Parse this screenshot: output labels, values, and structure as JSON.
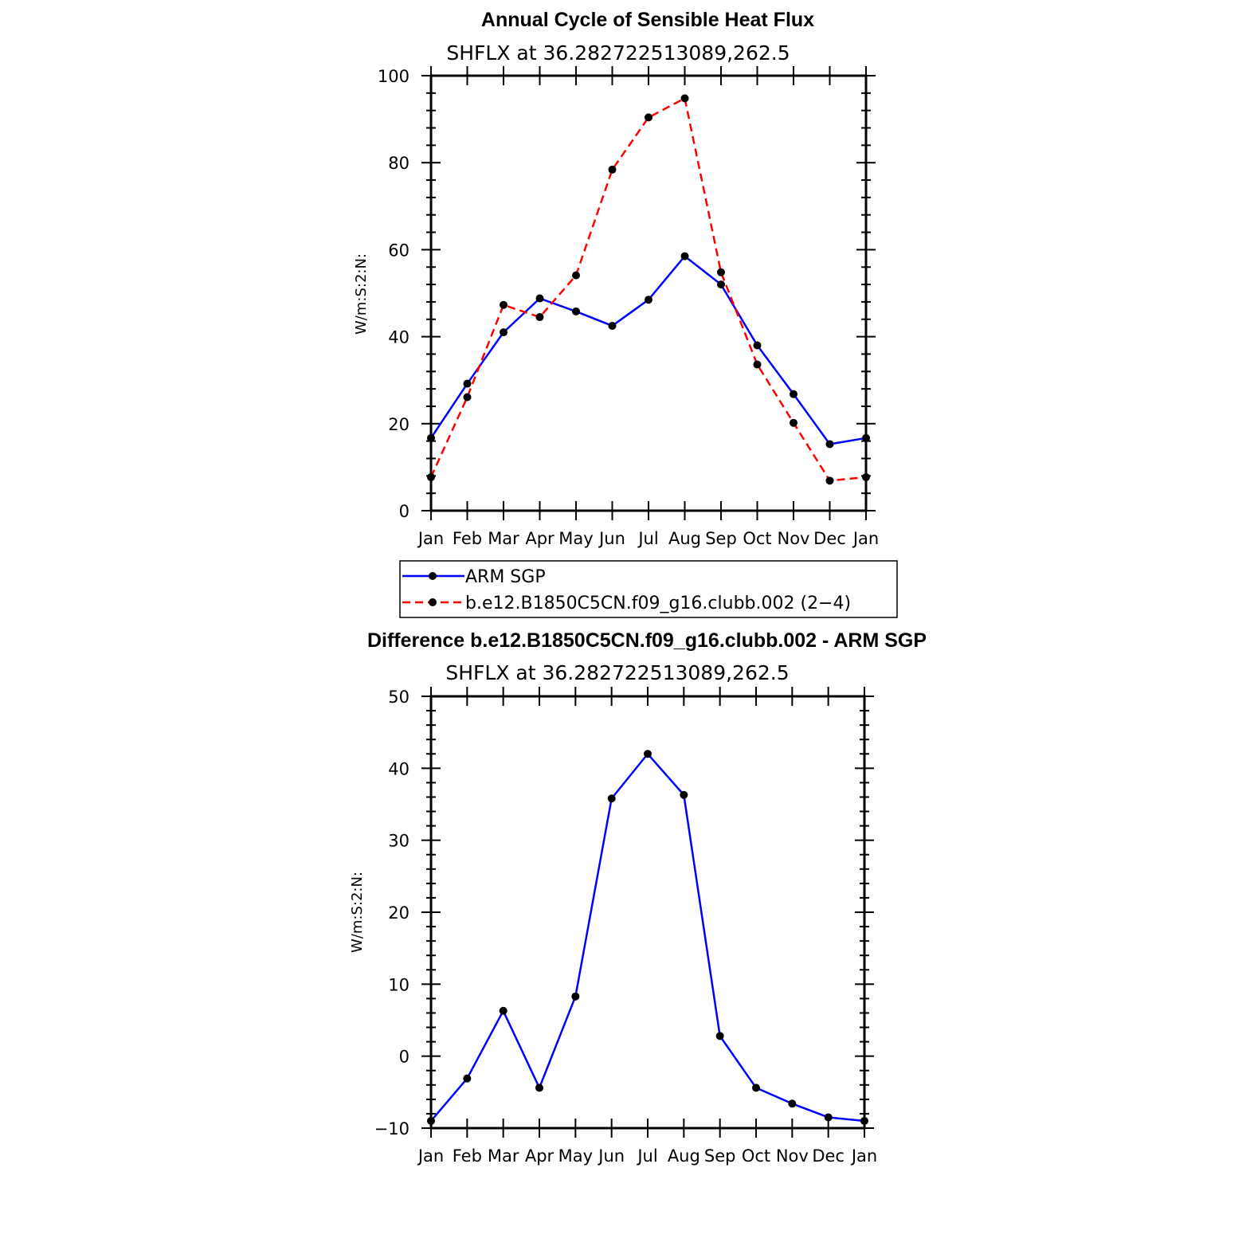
{
  "chart_data": [
    {
      "type": "line",
      "title": "Annual Cycle of Sensible Heat Flux",
      "subtitle": "SHFLX  at  36.282722513089,262.5",
      "ylabel": "W/m:S:2:N:",
      "xlabel": "",
      "ylim": [
        0,
        100
      ],
      "yticks": [
        0,
        20,
        40,
        60,
        80,
        100
      ],
      "categories": [
        "Jan",
        "Feb",
        "Mar",
        "Apr",
        "May",
        "Jun",
        "Jul",
        "Aug",
        "Sep",
        "Oct",
        "Nov",
        "Dec",
        "Jan"
      ],
      "series": [
        {
          "name": "ARM  SGP",
          "color": "#0000ff",
          "dash": "solid",
          "values": [
            16.7,
            29.2,
            41.0,
            48.8,
            45.8,
            42.5,
            48.5,
            58.5,
            52.0,
            38.0,
            26.8,
            15.3,
            16.7
          ]
        },
        {
          "name": "b.e12.B1850C5CN.f09_g16.clubb.002  (2−4)",
          "color": "#ff0000",
          "dash": "dashed",
          "values": [
            7.7,
            26.1,
            47.3,
            44.5,
            54.1,
            78.4,
            90.4,
            94.8,
            54.8,
            33.6,
            20.2,
            6.9,
            7.7
          ]
        }
      ],
      "legend": "below"
    },
    {
      "type": "line",
      "title": "Difference b.e12.B1850C5CN.f09_g16.clubb.002 - ARM SGP",
      "subtitle": "SHFLX  at  36.282722513089,262.5",
      "ylabel": "W/m:S:2:N:",
      "xlabel": "",
      "ylim": [
        -10,
        50
      ],
      "yticks": [
        -10,
        0,
        10,
        20,
        30,
        40,
        50
      ],
      "ytick_labels": [
        "−10",
        "0",
        "10",
        "20",
        "30",
        "40",
        "50"
      ],
      "categories": [
        "Jan",
        "Feb",
        "Mar",
        "Apr",
        "May",
        "Jun",
        "Jul",
        "Aug",
        "Sep",
        "Oct",
        "Nov",
        "Dec",
        "Jan"
      ],
      "series": [
        {
          "name": "Difference",
          "color": "#0000ff",
          "dash": "solid",
          "values": [
            -9.0,
            -3.1,
            6.3,
            -4.4,
            8.3,
            35.8,
            42.0,
            36.3,
            2.8,
            -4.4,
            -6.6,
            -8.5,
            -9.0
          ]
        }
      ]
    }
  ]
}
